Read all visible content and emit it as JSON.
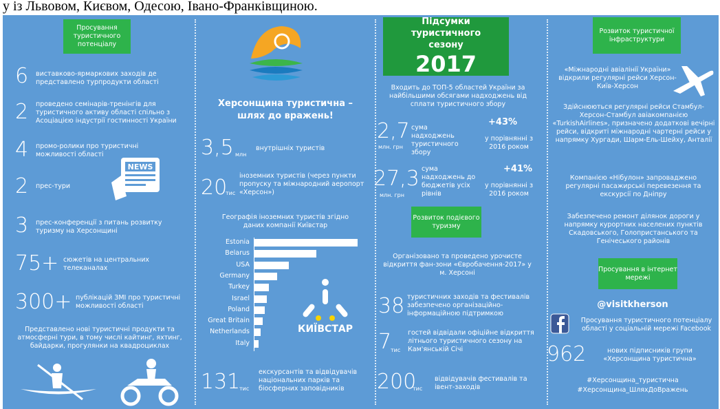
{
  "top_text": "у із Львовом, Києвом, Одесою, Івано-Франківщиною.",
  "col1": {
    "box": "Просування туристичного потенціалу",
    "items": [
      {
        "number": "6",
        "text": "виставково-ярмаркових заходів де представлено турпродукти області"
      },
      {
        "number": "2",
        "text": "проведено семінарів-тренінгів для туристичного активу області спільно з Асоціацією індустрії гостинності України"
      },
      {
        "number": "4",
        "text": "промо-ролики про туристичні можливості області"
      },
      {
        "number": "2",
        "text": "прес-тури"
      },
      {
        "number": "3",
        "text": "прес-конференції з питань розвитку туризму на Херсонщині"
      },
      {
        "number": "75+",
        "text": "сюжетів на центральних телеканалах"
      },
      {
        "number": "300+",
        "text": "публікацій ЗМІ про туристичні можливості області"
      }
    ],
    "paragraph": "Представлено нові туристичні продукти та атмосферні тури, в тому числі кайтинг, яхтинг, байдарки, прогулянки на квадроциклах",
    "news_icon": "NEWS"
  },
  "col2": {
    "title": "Херсонщина туристична – шлях до вражень!",
    "stats": [
      {
        "number": "3,5",
        "unit": "млн",
        "text": "внутрішніх туристів"
      },
      {
        "number": "20",
        "unit": "тис",
        "text": "іноземних туристів (через пункти пропуску та міжнародний аеропорт «Херсон»)"
      }
    ],
    "chart": {
      "type": "bar",
      "title": "Географія іноземних туристів згідно даних компанії Київстар",
      "categories": [
        "Estonia",
        "Belarus",
        "USA",
        "Germany",
        "Turkey",
        "Israel",
        "Poland",
        "Great Britain",
        "Netherlands",
        "Italy"
      ],
      "values": [
        100,
        60,
        33,
        22,
        14,
        12,
        10,
        8,
        6,
        4
      ],
      "color": "#ffffff"
    },
    "brand": "КИЇВСТАР",
    "bottom": {
      "number": "131",
      "unit": "тис",
      "text": "екскурсантів та відвідувачів національних парків та біосферних заповідників"
    }
  },
  "col3": {
    "header": {
      "title": "Підсумки туристичного сезону",
      "year": "2017"
    },
    "top5": "Входить до ТОП-5 областей України за найбільшими обсягами надходжень від сплати туристичного збору",
    "stats": [
      {
        "number": "2,7",
        "unit": "млн. грн",
        "text": "сума надходжень туристичного збору",
        "change": "+43%",
        "compare": "у порівнянні з 2016 роком"
      },
      {
        "number": "27,3",
        "unit": "млн. грн",
        "text": "сума надходжень до бюджетів усіх рівнів",
        "change": "+41%",
        "compare": "у порівнянні з 2016 роком"
      }
    ],
    "box": "Розвиток подієвого туризму",
    "event_text": "Організовано та проведено урочисте відкриття фан-зони «Євробачення-2017» у м. Херсоні",
    "events": [
      {
        "number": "38",
        "text": "туристичних заходів та фестивалів забезпечено організаційно-інформаційною підтримкою"
      },
      {
        "number": "7",
        "unit": "тис",
        "text": "гостей відвідали офіційне відкриття літнього туристичного сезону на Кам'янській Січі"
      },
      {
        "number": "200",
        "unit": "тис",
        "text": "відвідувачів фестивалів та івент-заходів"
      }
    ]
  },
  "col4": {
    "box": "Розвиток туристичної інфраструктури",
    "paragraphs": [
      "«Міжнародні авіалінії України» відкрили регулярні рейси Херсон-Київ-Херсон",
      "Здійснюються регулярні рейси Стамбул-Херсон-Стамбул авіакомпанією «TurkishAirlines», призначено додаткові вечірні рейси, відкриті міжнародні чартерні рейси у напрямку Хургади, Шарм-Ель-Шейху, Анталії",
      "Компанією «Нібулон» запроваджено регулярні пасажирські перевезення та екскурсії по Дніпру",
      "Забезпечено ремонт ділянок дороги у напрямку курортних населених пунктів Скадовського, Голопристанського та Генічеського районів"
    ],
    "box2": "Просування в інтернет мережі",
    "handle": "@visitkherson",
    "facebook_text": "Просування туристичного потенціалу області у соціальній мережі Facebook",
    "subscribers": {
      "number": "962",
      "text": "нових підписників групи «Херсонщина туристична»"
    },
    "hashtags": [
      "#Херсонщина_туристична",
      "#Херсонщина_ШляхДоВражень"
    ]
  }
}
